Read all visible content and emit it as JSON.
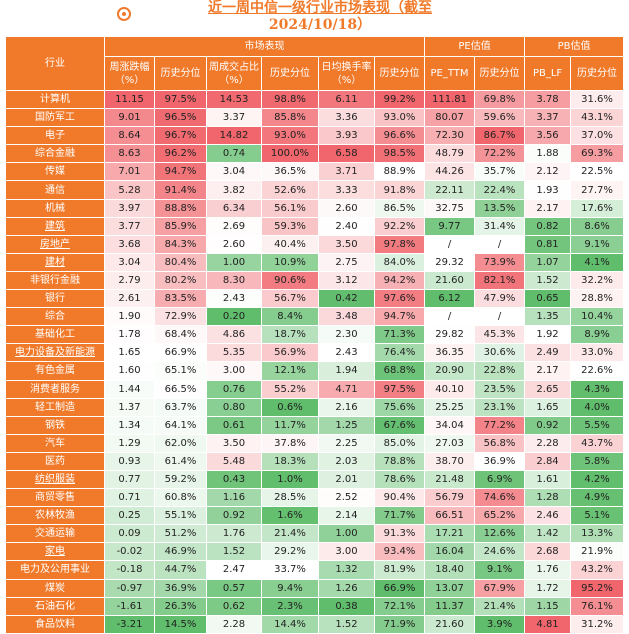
{
  "title_line1": "近一周中信一级行业市场表现（截至",
  "title_line2": "2024/10/18）",
  "group_headers": {
    "market": "市场表现",
    "pe": "PE估值",
    "pb": "PB估值"
  },
  "column_headers": {
    "industry": "行业",
    "week_change": "周涨跌幅（%）",
    "hist1": "历史分位",
    "week_turnover": "周成交占比（%）",
    "hist2": "历史分位",
    "daily_turnover": "日均换手率（%）",
    "hist3": "历史分位",
    "pe_ttm": "PE_TTM",
    "hist4": "历史分位",
    "pb_lf": "PB_LF",
    "hist5": "历史分位"
  },
  "rows": [
    [
      "计算机",
      "11.15",
      "97.5%",
      "14.53",
      "98.8%",
      "6.11",
      "99.2%",
      "111.81",
      "69.8%",
      "3.78",
      "31.6%"
    ],
    [
      "国防军工",
      "9.01",
      "96.5%",
      "3.37",
      "85.8%",
      "3.36",
      "93.0%",
      "80.07",
      "59.6%",
      "3.37",
      "43.1%"
    ],
    [
      "电子",
      "8.64",
      "96.7%",
      "14.82",
      "93.0%",
      "3.93",
      "96.6%",
      "72.30",
      "86.7%",
      "3.56",
      "37.0%"
    ],
    [
      "综合金融",
      "8.63",
      "96.2%",
      "0.74",
      "100.0%",
      "6.58",
      "98.5%",
      "48.79",
      "72.2%",
      "1.88",
      "69.3%"
    ],
    [
      "传媒",
      "7.01",
      "94.7%",
      "3.04",
      "36.5%",
      "3.71",
      "88.9%",
      "44.26",
      "35.7%",
      "2.12",
      "22.5%"
    ],
    [
      "通信",
      "5.28",
      "91.4%",
      "3.82",
      "52.6%",
      "3.33",
      "91.8%",
      "22.11",
      "22.4%",
      "1.93",
      "27.7%"
    ],
    [
      "机械",
      "3.97",
      "88.8%",
      "6.34",
      "56.1%",
      "2.60",
      "86.5%",
      "32.75",
      "13.5%",
      "2.17",
      "17.6%"
    ],
    [
      "建筑",
      "3.77",
      "85.9%",
      "2.69",
      "59.3%",
      "2.40",
      "92.2%",
      "9.77",
      "31.4%",
      "0.82",
      "8.6%"
    ],
    [
      "房地产",
      "3.68",
      "84.3%",
      "2.60",
      "40.4%",
      "3.50",
      "97.8%",
      "/",
      "/",
      "0.81",
      "9.1%"
    ],
    [
      "建材",
      "3.04",
      "80.4%",
      "1.00",
      "10.9%",
      "2.75",
      "84.0%",
      "29.32",
      "73.9%",
      "1.07",
      "4.1%"
    ],
    [
      "非银行金融",
      "2.79",
      "80.2%",
      "8.30",
      "90.6%",
      "3.12",
      "94.2%",
      "21.60",
      "82.1%",
      "1.52",
      "32.2%"
    ],
    [
      "银行",
      "2.61",
      "83.5%",
      "2.43",
      "56.7%",
      "0.42",
      "97.6%",
      "6.12",
      "47.9%",
      "0.65",
      "28.8%"
    ],
    [
      "综合",
      "1.90",
      "72.9%",
      "0.20",
      "8.4%",
      "3.48",
      "94.7%",
      "/",
      "/",
      "1.35",
      "10.4%"
    ],
    [
      "基础化工",
      "1.78",
      "68.4%",
      "4.86",
      "18.7%",
      "2.30",
      "71.3%",
      "29.82",
      "45.3%",
      "1.92",
      "8.9%"
    ],
    [
      "电力设备及新能源",
      "1.65",
      "66.9%",
      "5.35",
      "56.9%",
      "2.43",
      "76.4%",
      "36.35",
      "30.6%",
      "2.49",
      "33.0%"
    ],
    [
      "有色金属",
      "1.60",
      "65.1%",
      "3.00",
      "12.1%",
      "1.94",
      "68.8%",
      "20.90",
      "22.8%",
      "2.17",
      "22.6%"
    ],
    [
      "消费者服务",
      "1.44",
      "66.5%",
      "0.76",
      "55.2%",
      "4.71",
      "97.5%",
      "40.10",
      "23.5%",
      "2.65",
      "4.3%"
    ],
    [
      "轻工制造",
      "1.37",
      "63.7%",
      "0.80",
      "0.6%",
      "2.16",
      "75.6%",
      "25.25",
      "23.1%",
      "1.65",
      "4.0%"
    ],
    [
      "钢铁",
      "1.34",
      "64.1%",
      "0.61",
      "11.7%",
      "1.25",
      "67.6%",
      "34.04",
      "77.2%",
      "0.92",
      "5.5%"
    ],
    [
      "汽车",
      "1.29",
      "62.0%",
      "3.50",
      "37.8%",
      "2.25",
      "85.0%",
      "27.03",
      "56.8%",
      "2.28",
      "43.7%"
    ],
    [
      "医药",
      "0.93",
      "61.4%",
      "5.48",
      "18.3%",
      "2.03",
      "78.8%",
      "38.70",
      "36.9%",
      "2.84",
      "5.8%"
    ],
    [
      "纺织服装",
      "0.77",
      "59.2%",
      "0.43",
      "1.0%",
      "2.01",
      "78.6%",
      "21.48",
      "6.9%",
      "1.61",
      "4.2%"
    ],
    [
      "商贸零售",
      "0.71",
      "60.8%",
      "1.16",
      "28.5%",
      "2.52",
      "90.4%",
      "56.79",
      "74.6%",
      "1.28",
      "4.9%"
    ],
    [
      "农林牧渔",
      "0.25",
      "55.1%",
      "0.92",
      "1.6%",
      "2.14",
      "71.7%",
      "66.51",
      "65.2%",
      "2.46",
      "5.1%"
    ],
    [
      "交通运输",
      "0.09",
      "51.2%",
      "1.76",
      "21.4%",
      "1.00",
      "91.3%",
      "17.21",
      "12.6%",
      "1.42",
      "13.3%"
    ],
    [
      "家电",
      "-0.02",
      "46.9%",
      "1.52",
      "29.2%",
      "3.00",
      "93.4%",
      "16.04",
      "24.6%",
      "2.68",
      "21.9%"
    ],
    [
      "电力及公用事业",
      "-0.18",
      "44.7%",
      "2.47",
      "33.7%",
      "1.32",
      "81.9%",
      "18.40",
      "9.1%",
      "1.76",
      "43.2%"
    ],
    [
      "煤炭",
      "-0.97",
      "36.9%",
      "0.57",
      "9.4%",
      "1.26",
      "66.9%",
      "13.07",
      "67.9%",
      "1.72",
      "95.2%"
    ],
    [
      "石油石化",
      "-1.61",
      "26.3%",
      "0.62",
      "2.3%",
      "0.38",
      "72.1%",
      "11.37",
      "21.4%",
      "1.15",
      "76.1%"
    ],
    [
      "食品饮料",
      "-3.21",
      "14.5%",
      "2.28",
      "14.4%",
      "1.52",
      "71.9%",
      "21.60",
      "3.9%",
      "4.81",
      "31.2%"
    ]
  ],
  "underlined_industries": [
    "建筑",
    "房地产",
    "建材",
    "电力设备及新能源",
    "纺织服装",
    "家电"
  ],
  "colors": {
    "header_orange": "#f07a2a",
    "high_red": "#f0666c",
    "low_green": "#5fbd6b",
    "neutral": "#ffffff"
  }
}
